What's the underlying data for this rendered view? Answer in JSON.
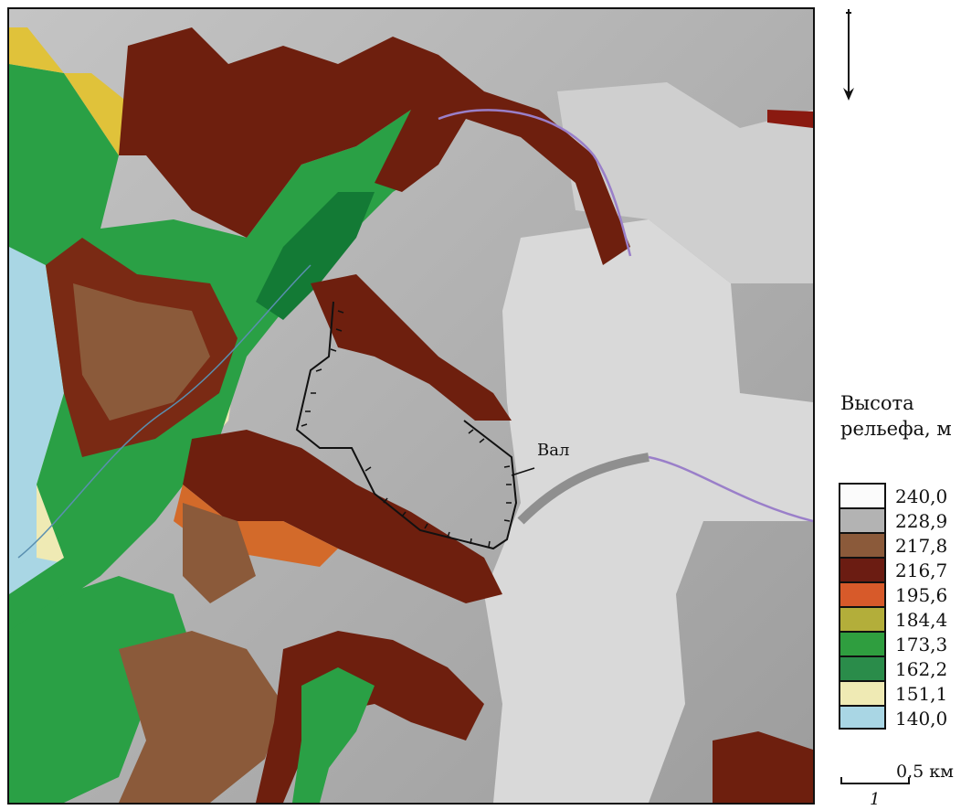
{
  "map": {
    "feature_label": "Вал",
    "colors": {
      "background_gray": "#b8b8b8",
      "light_plateau": "#d9d9d9",
      "dark_brown": "#6e1f0e",
      "brown": "#8a3a1a",
      "orange": "#d36a2a",
      "yellow": "#e0c23a",
      "green": "#2aa045",
      "dark_green": "#137a35",
      "pale": "#e9e4b8",
      "water": "#8fc8e6",
      "river_line": "#9a7fc9",
      "rampart_line": "#111111"
    }
  },
  "legend": {
    "title_line1": "Высота",
    "title_line2": "рельефа, м",
    "items": [
      {
        "label": "240,0",
        "color": "#fbfbfb"
      },
      {
        "label": "228,9",
        "color": "#b3b3b3"
      },
      {
        "label": "217,8",
        "color": "#8b5a3a"
      },
      {
        "label": "216,7",
        "color": "#6b1c12"
      },
      {
        "label": "195,6",
        "color": "#d75a2a"
      },
      {
        "label": "184,4",
        "color": "#b3ae3a"
      },
      {
        "label": "173,3",
        "color": "#2f9e3f"
      },
      {
        "label": "162,2",
        "color": "#2a8c4a"
      },
      {
        "label": "151,1",
        "color": "#efeab4"
      },
      {
        "label": "140,0",
        "color": "#a9d6e4"
      }
    ]
  },
  "scale": {
    "label": "0,5 км"
  },
  "page": {
    "number": "1"
  },
  "north_arrow": {
    "icon": "north-arrow-icon"
  }
}
